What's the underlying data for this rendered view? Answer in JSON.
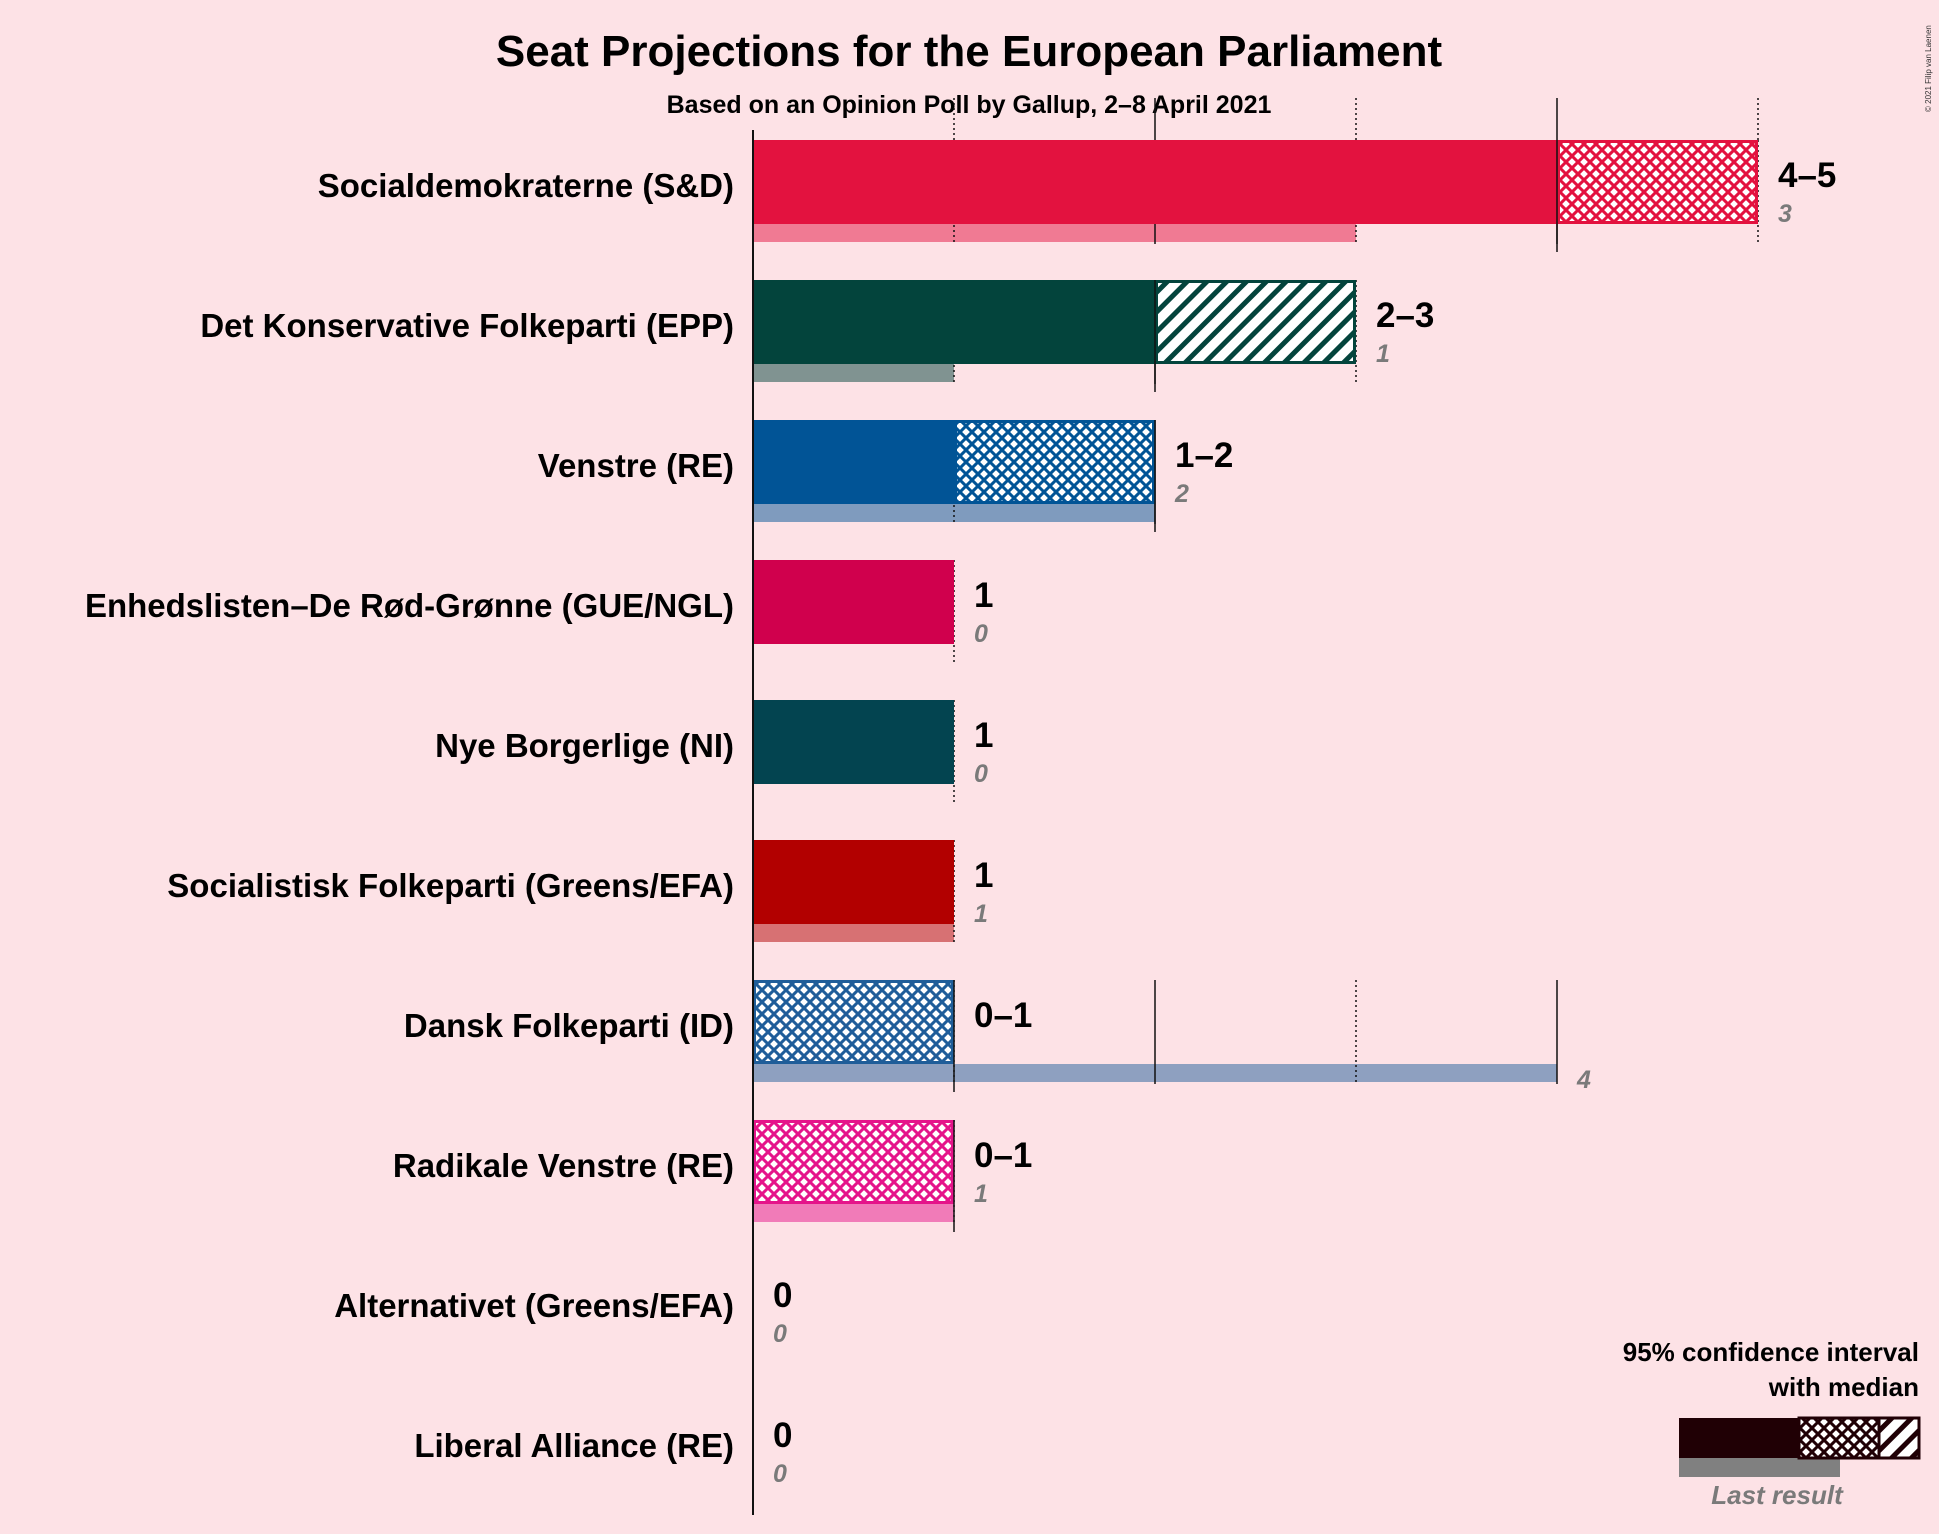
{
  "title": "Seat Projections for the European Parliament",
  "subtitle": "Based on an Opinion Poll by Gallup, 2–8 April 2021",
  "copyright": "© 2021 Filip van Laenen",
  "legend": {
    "line1": "95% confidence interval",
    "line2": "with median",
    "last_result": "Last result"
  },
  "chart_data": {
    "type": "bar",
    "orientation": "horizontal",
    "title": "Seat Projections for the European Parliament",
    "subtitle": "Based on an Opinion Poll by Gallup, 2–8 April 2021",
    "xlim": [
      0,
      5
    ],
    "parties": [
      {
        "name": "Socialdemokraterne (S&D)",
        "color": "#e3123f",
        "low": 4,
        "median": 4,
        "high": 5,
        "range_label": "4–5",
        "last": 3,
        "last_label": "3"
      },
      {
        "name": "Det Konservative Folkeparti (EPP)",
        "color": "#03443c",
        "low": 2,
        "median": 2,
        "high": 3,
        "range_label": "2–3",
        "last": 1,
        "last_label": "1"
      },
      {
        "name": "Venstre (RE)",
        "color": "#015496",
        "low": 1,
        "median": 2,
        "high": 2,
        "range_label": "1–2",
        "last": 2,
        "last_label": "2"
      },
      {
        "name": "Enhedslisten–De Rød-Grønne (GUE/NGL)",
        "color": "#d0004d",
        "low": 1,
        "median": 1,
        "high": 1,
        "range_label": "1",
        "last": 0,
        "last_label": "0"
      },
      {
        "name": "Nye Borgerlige (NI)",
        "color": "#034450",
        "low": 1,
        "median": 1,
        "high": 1,
        "range_label": "1",
        "last": 0,
        "last_label": "0"
      },
      {
        "name": "Socialistisk Folkeparti (Greens/EFA)",
        "color": "#b20000",
        "low": 1,
        "median": 1,
        "high": 1,
        "range_label": "1",
        "last": 1,
        "last_label": "1"
      },
      {
        "name": "Dansk Folkeparti (ID)",
        "color": "#1f5d99",
        "low": 0,
        "median": 1,
        "high": 1,
        "range_label": "0–1",
        "last": 4,
        "last_label": "4"
      },
      {
        "name": "Radikale Venstre (RE)",
        "color": "#e5148a",
        "low": 0,
        "median": 1,
        "high": 1,
        "range_label": "0–1",
        "last": 1,
        "last_label": "1"
      },
      {
        "name": "Alternativet (Greens/EFA)",
        "color": "#2b8738",
        "low": 0,
        "median": 0,
        "high": 0,
        "range_label": "0",
        "last": 0,
        "last_label": "0"
      },
      {
        "name": "Liberal Alliance (RE)",
        "color": "#21b3ca",
        "low": 0,
        "median": 0,
        "high": 0,
        "range_label": "0",
        "last": 0,
        "last_label": "0"
      }
    ]
  }
}
